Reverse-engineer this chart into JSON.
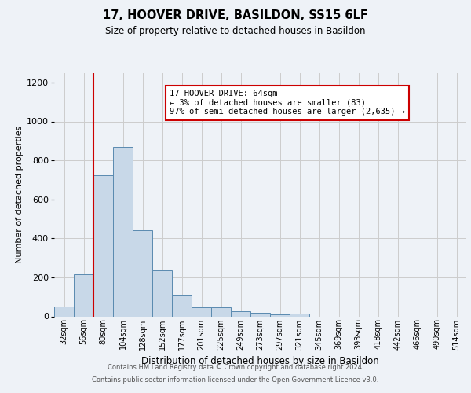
{
  "title_line1": "17, HOOVER DRIVE, BASILDON, SS15 6LF",
  "title_line2": "Size of property relative to detached houses in Basildon",
  "xlabel": "Distribution of detached houses by size in Basildon",
  "ylabel": "Number of detached properties",
  "bar_labels": [
    "32sqm",
    "56sqm",
    "80sqm",
    "104sqm",
    "128sqm",
    "152sqm",
    "177sqm",
    "201sqm",
    "225sqm",
    "249sqm",
    "273sqm",
    "297sqm",
    "321sqm",
    "345sqm",
    "369sqm",
    "393sqm",
    "418sqm",
    "442sqm",
    "466sqm",
    "490sqm",
    "514sqm"
  ],
  "bar_heights": [
    50,
    215,
    725,
    870,
    440,
    235,
    110,
    45,
    45,
    25,
    20,
    10,
    15,
    0,
    0,
    0,
    0,
    0,
    0,
    0,
    0
  ],
  "bar_color": "#c8d8e8",
  "bar_edge_color": "#5a8ab0",
  "marker_color": "#cc0000",
  "annotation_text": "17 HOOVER DRIVE: 64sqm\n← 3% of detached houses are smaller (83)\n97% of semi-detached houses are larger (2,635) →",
  "annotation_box_color": "#ffffff",
  "annotation_box_edge": "#cc0000",
  "ylim": [
    0,
    1250
  ],
  "yticks": [
    0,
    200,
    400,
    600,
    800,
    1000,
    1200
  ],
  "footer_line1": "Contains HM Land Registry data © Crown copyright and database right 2024.",
  "footer_line2": "Contains public sector information licensed under the Open Government Licence v3.0.",
  "bg_color": "#eef2f7",
  "plot_bg_color": "#eef2f7",
  "grid_color": "#cccccc"
}
